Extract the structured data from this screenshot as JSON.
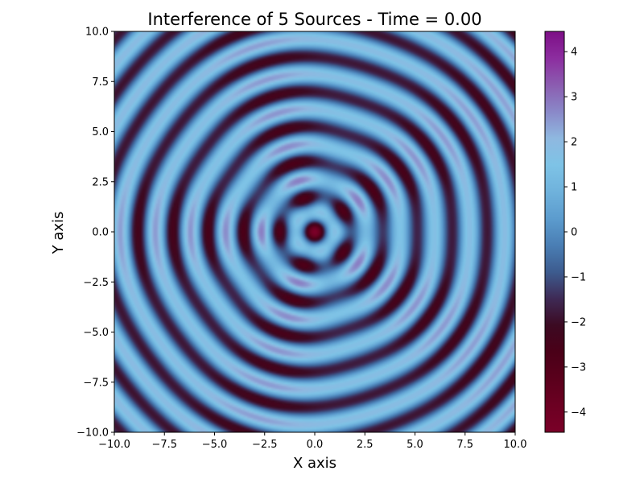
{
  "chart_data": {
    "type": "heatmap",
    "title": "Interference of 5 Sources - Time = 0.00",
    "xlabel": "X axis",
    "ylabel": "Y axis",
    "xlim": [
      -10,
      10
    ],
    "ylim": [
      -10,
      10
    ],
    "x_ticks": [
      -10,
      -7.5,
      -5,
      -2.5,
      0,
      2.5,
      5,
      7.5,
      10
    ],
    "y_ticks": [
      -10,
      -7.5,
      -5,
      -2.5,
      0,
      2.5,
      5,
      7.5,
      10
    ],
    "x_tick_labels": [
      "−10.0",
      "−7.5",
      "−5.0",
      "−2.5",
      "0.0",
      "2.5",
      "5.0",
      "7.5",
      "10.0"
    ],
    "y_tick_labels": [
      "−10.0",
      "−7.5",
      "−5.0",
      "−2.5",
      "0.0",
      "2.5",
      "5.0",
      "7.5",
      "10.0"
    ],
    "time": 0.0,
    "num_sources": 5,
    "source_radius": 1,
    "wavenumber": 3.6,
    "colorbar": {
      "min": -4.45,
      "max": 4.45,
      "ticks": [
        -4,
        -3,
        -2,
        -1,
        0,
        1,
        2,
        3,
        4
      ],
      "tick_labels": [
        "−4",
        "−3",
        "−2",
        "−1",
        "0",
        "1",
        "2",
        "3",
        "4"
      ],
      "stops": [
        "#7a0028",
        "#6c0022",
        "#5a001c",
        "#4a0018",
        "#3c0a22",
        "#3e2a55",
        "#3d5c8f",
        "#4a7eb4",
        "#5c9cce",
        "#6fb2dc",
        "#7ec3e6",
        "#8fb8e0",
        "#8a88c8",
        "#8b5cb0",
        "#8c2d9f",
        "#7d0f86"
      ]
    }
  }
}
